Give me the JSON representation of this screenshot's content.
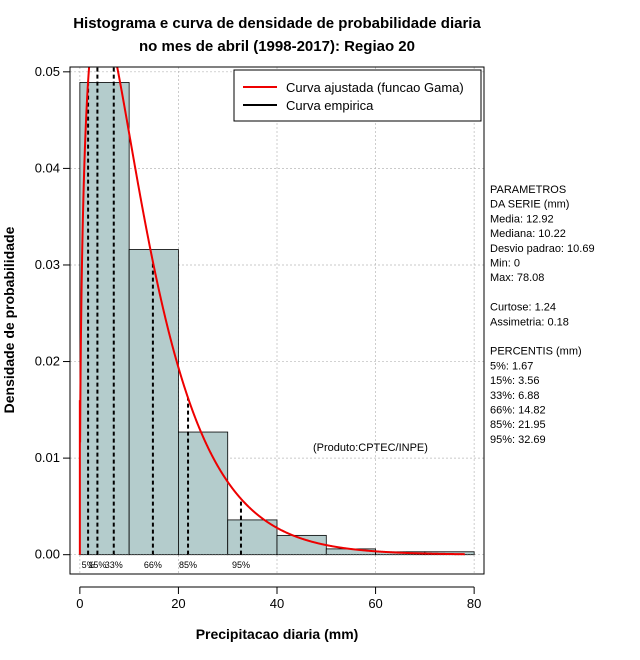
{
  "chart_data": {
    "type": "bar",
    "title": [
      "Histograma e curva de densidade de probabilidade diaria",
      "no mes de abril (1998-2017): Regiao 20"
    ],
    "xlabel": "Precipitacao diaria (mm)",
    "ylabel": "Densidade de probabilidade",
    "xlim": [
      -2,
      82
    ],
    "ylim": [
      -0.002,
      0.0505
    ],
    "x_ticks": [
      0,
      20,
      40,
      60,
      80
    ],
    "y_ticks": [
      0.0,
      0.01,
      0.02,
      0.03,
      0.04,
      0.05
    ],
    "x_tick_labels": [
      "0",
      "20",
      "40",
      "60",
      "80"
    ],
    "y_tick_labels": [
      "0.00",
      "0.01",
      "0.02",
      "0.03",
      "0.04",
      "0.05"
    ],
    "grid": true,
    "bins": [
      {
        "from": 0,
        "to": 10,
        "density": 0.0489
      },
      {
        "from": 10,
        "to": 20,
        "density": 0.0316
      },
      {
        "from": 20,
        "to": 30,
        "density": 0.0127
      },
      {
        "from": 30,
        "to": 40,
        "density": 0.0036
      },
      {
        "from": 40,
        "to": 50,
        "density": 0.002
      },
      {
        "from": 50,
        "to": 60,
        "density": 0.0006
      },
      {
        "from": 60,
        "to": 70,
        "density": 0.0003
      },
      {
        "from": 70,
        "to": 80,
        "density": 0.0003
      }
    ],
    "fitted_curve": {
      "name": "Curva ajustada (funcao Gama)",
      "color": "#ee0000",
      "shape": 1.4621,
      "scale": 8.8365
    },
    "empirical_curve_name": "Curva empirica",
    "empirical_color": "#000000",
    "bar_fill": "#b4cccc",
    "legend_position": "top-right",
    "percentiles": [
      {
        "label": "5%",
        "value": 1.67
      },
      {
        "label": "15%",
        "value": 3.56
      },
      {
        "label": "33%",
        "value": 6.88
      },
      {
        "label": "66%",
        "value": 14.82
      },
      {
        "label": "85%",
        "value": 21.95
      },
      {
        "label": "95%",
        "value": 32.69
      }
    ],
    "percentile_marker_labels": [
      "5%",
      "15%",
      "33%",
      "66%",
      "85%",
      "95%"
    ],
    "annotation": "(Produto:CPTEC/INPE)",
    "side_panel": [
      "PARAMETROS",
      "DA SERIE (mm)",
      "  Media: 12.92",
      "  Mediana: 10.22",
      "  Desvio padrao: 10.69",
      "  Min: 0",
      "  Max: 78.08",
      "",
      "Curtose: 1.24",
      "Assimetria: 0.18",
      "",
      "PERCENTIS (mm)",
      "  5%: 1.67",
      "  15%: 3.56",
      "  33%: 6.88",
      "  66%: 14.82",
      "  85%: 21.95",
      "  95%: 32.69"
    ]
  }
}
